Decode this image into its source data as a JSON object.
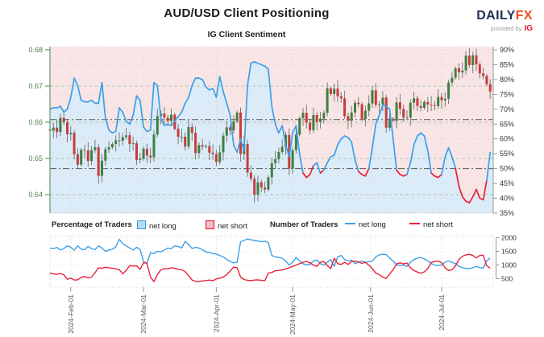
{
  "header": {
    "title": "AUD/USD Client Positioning",
    "subtitle": "IG Client Sentiment",
    "logo": {
      "brand_primary": "DAILY",
      "brand_accent": "FX",
      "provided_by": "provided by",
      "provider": "IG"
    }
  },
  "legend": {
    "percentage_title": "Percentage of Traders",
    "number_title": "Number of Traders",
    "net_long": "net long",
    "net_short": "net short"
  },
  "colors": {
    "accent_red": "#e8112d",
    "brand_navy": "#223154",
    "brand_orange": "#f04e23",
    "candle_up": "#3e8042",
    "candle_down": "#c63c3c",
    "wick": "#6e6e6e",
    "sentiment_long": "#3da0e8",
    "sentiment_short": "#e8213a",
    "bg_above_line": "#f9e5e5",
    "bg_below_line": "#dcebf8",
    "price_axis": "#4e8552",
    "pct_axis": "#333333",
    "grid_price": "#a8c8a8",
    "grid_pct": "#cfcfcf",
    "grid_month": "#cbcbcb",
    "reference": "#6a6a6a",
    "frame": "#c8c8c8",
    "tick_label": "#555555",
    "count_axis": "#333333"
  },
  "chart_data": [
    {
      "type": "candlestick+line",
      "title": "IG Client Sentiment",
      "legend_position": "below",
      "grid": true,
      "x_ticks": [
        {
          "label": "2024-Feb-01",
          "i": 6
        },
        {
          "label": "2024-Mar-01",
          "i": 27
        },
        {
          "label": "2024-Apr-01",
          "i": 48
        },
        {
          "label": "2024-May-01",
          "i": 70
        },
        {
          "label": "2024-Jun-01",
          "i": 92.5
        },
        {
          "label": "2024-Jul-01",
          "i": 113
        }
      ],
      "price_axis": {
        "side": "left",
        "ticks": [
          0.68,
          0.67,
          0.66,
          0.65,
          0.64
        ],
        "range": [
          0.635,
          0.681
        ]
      },
      "pct_axis": {
        "side": "right",
        "unit": "%",
        "ticks": [
          90,
          85,
          80,
          75,
          70,
          65,
          60,
          55,
          50,
          45,
          40,
          35
        ],
        "range": [
          35,
          90
        ]
      },
      "reference_lines_pct": [
        66.5,
        50
      ],
      "first_open": 0.658,
      "wick_margin": 0.0013,
      "dates": [
        "2024-01-24",
        "2024-01-25",
        "2024-01-26",
        "2024-01-29",
        "2024-01-30",
        "2024-01-31",
        "2024-02-01",
        "2024-02-02",
        "2024-02-05",
        "2024-02-06",
        "2024-02-07",
        "2024-02-08",
        "2024-02-09",
        "2024-02-12",
        "2024-02-13",
        "2024-02-14",
        "2024-02-15",
        "2024-02-16",
        "2024-02-19",
        "2024-02-20",
        "2024-02-21",
        "2024-02-22",
        "2024-02-23",
        "2024-02-26",
        "2024-02-27",
        "2024-02-28",
        "2024-02-29",
        "2024-03-01",
        "2024-03-04",
        "2024-03-05",
        "2024-03-06",
        "2024-03-07",
        "2024-03-08",
        "2024-03-11",
        "2024-03-12",
        "2024-03-13",
        "2024-03-14",
        "2024-03-15",
        "2024-03-18",
        "2024-03-19",
        "2024-03-20",
        "2024-03-21",
        "2024-03-22",
        "2024-03-25",
        "2024-03-26",
        "2024-03-27",
        "2024-03-28",
        "2024-03-29",
        "2024-04-01",
        "2024-04-02",
        "2024-04-03",
        "2024-04-04",
        "2024-04-05",
        "2024-04-08",
        "2024-04-09",
        "2024-04-10",
        "2024-04-11",
        "2024-04-12",
        "2024-04-15",
        "2024-04-16",
        "2024-04-17",
        "2024-04-18",
        "2024-04-19",
        "2024-04-22",
        "2024-04-23",
        "2024-04-24",
        "2024-04-25",
        "2024-04-26",
        "2024-04-29",
        "2024-04-30",
        "2024-05-01",
        "2024-05-02",
        "2024-05-03",
        "2024-05-06",
        "2024-05-07",
        "2024-05-08",
        "2024-05-09",
        "2024-05-10",
        "2024-05-13",
        "2024-05-14",
        "2024-05-15",
        "2024-05-16",
        "2024-05-17",
        "2024-05-20",
        "2024-05-21",
        "2024-05-22",
        "2024-05-23",
        "2024-05-24",
        "2024-05-27",
        "2024-05-28",
        "2024-05-29",
        "2024-05-30",
        "2024-05-31",
        "2024-06-03",
        "2024-06-04",
        "2024-06-05",
        "2024-06-06",
        "2024-06-07",
        "2024-06-10",
        "2024-06-11",
        "2024-06-12",
        "2024-06-13",
        "2024-06-14",
        "2024-06-17",
        "2024-06-18",
        "2024-06-19",
        "2024-06-20",
        "2024-06-21",
        "2024-06-24",
        "2024-06-25",
        "2024-06-26",
        "2024-06-27",
        "2024-06-28",
        "2024-07-01",
        "2024-07-02",
        "2024-07-03",
        "2024-07-04",
        "2024-07-05",
        "2024-07-08",
        "2024-07-09",
        "2024-07-10",
        "2024-07-11",
        "2024-07-12",
        "2024-07-15",
        "2024-07-16",
        "2024-07-17",
        "2024-07-18",
        "2024-07-19"
      ],
      "close": [
        0.6577,
        0.6585,
        0.6573,
        0.6612,
        0.66,
        0.6567,
        0.6571,
        0.6512,
        0.6483,
        0.6524,
        0.6522,
        0.6493,
        0.6523,
        0.6531,
        0.6452,
        0.6494,
        0.6525,
        0.6531,
        0.654,
        0.655,
        0.6549,
        0.6559,
        0.6564,
        0.654,
        0.6542,
        0.6496,
        0.6499,
        0.6527,
        0.6508,
        0.6503,
        0.6566,
        0.6617,
        0.6624,
        0.6613,
        0.6604,
        0.6621,
        0.6582,
        0.656,
        0.656,
        0.6533,
        0.6587,
        0.6571,
        0.6515,
        0.6537,
        0.6533,
        0.6534,
        0.6516,
        0.6512,
        0.649,
        0.6517,
        0.6563,
        0.6586,
        0.6578,
        0.6603,
        0.6627,
        0.6512,
        0.654,
        0.6461,
        0.6444,
        0.64,
        0.6434,
        0.642,
        0.6414,
        0.6448,
        0.6487,
        0.6498,
        0.6518,
        0.6532,
        0.6565,
        0.6472,
        0.6523,
        0.6566,
        0.6611,
        0.6626,
        0.6599,
        0.6578,
        0.662,
        0.6601,
        0.661,
        0.6626,
        0.6694,
        0.6678,
        0.6693,
        0.6672,
        0.6666,
        0.6617,
        0.6604,
        0.6627,
        0.6654,
        0.665,
        0.6609,
        0.6632,
        0.6652,
        0.6688,
        0.6648,
        0.6649,
        0.6668,
        0.6585,
        0.661,
        0.6604,
        0.6655,
        0.6637,
        0.6613,
        0.6613,
        0.6654,
        0.6666,
        0.6645,
        0.664,
        0.6656,
        0.6649,
        0.6647,
        0.6645,
        0.667,
        0.6661,
        0.6665,
        0.671,
        0.6723,
        0.6749,
        0.6738,
        0.6743,
        0.6784,
        0.6758,
        0.6785,
        0.676,
        0.6735,
        0.6728,
        0.6705,
        0.6685
      ],
      "net_long_pct": [
        70,
        70.5,
        70.5,
        71,
        69,
        70,
        74,
        80.5,
        78,
        73,
        72.5,
        72.5,
        73,
        72,
        72,
        79,
        67,
        63,
        62,
        62.5,
        70.5,
        69,
        66,
        65,
        68,
        74.5,
        73,
        64,
        62.5,
        63,
        79,
        78,
        67,
        64.5,
        65,
        64.5,
        66,
        67.5,
        69,
        72,
        74,
        78,
        80.5,
        80.5,
        80,
        77.5,
        76.5,
        77,
        74,
        81,
        76,
        72,
        68,
        58,
        55.5,
        60,
        56,
        78,
        85.5,
        86,
        85.5,
        85,
        84.5,
        83.5,
        71,
        65,
        62,
        64.5,
        58,
        54,
        62,
        64.5,
        55,
        48.5,
        47,
        48,
        51,
        52,
        48.5,
        49.5,
        52,
        54,
        54.5,
        58,
        60,
        61,
        60.5,
        59,
        53,
        49,
        48,
        47.5,
        50,
        57,
        65,
        68,
        71.5,
        71,
        70,
        60,
        49.5,
        48,
        47.5,
        48,
        52,
        58,
        61,
        62,
        61,
        56,
        48.5,
        47.5,
        47,
        48,
        54,
        57,
        54,
        50,
        44,
        40.5,
        39,
        38.5,
        40.5,
        43,
        40,
        39.5,
        46,
        55.5
      ]
    },
    {
      "type": "line",
      "title": "Number of Traders",
      "y_axis": {
        "side": "right",
        "ticks": [
          2000,
          1500,
          1000,
          500
        ],
        "range": [
          250,
          2100
        ]
      },
      "series": [
        {
          "name": "net long",
          "values": [
            1620,
            1600,
            1640,
            1550,
            1600,
            1700,
            1650,
            1540,
            1700,
            1580,
            1560,
            1680,
            1600,
            1560,
            1700,
            1620,
            1500,
            1550,
            1580,
            1660,
            1940,
            1780,
            1700,
            1620,
            1550,
            1650,
            1570,
            1120,
            1060,
            1450,
            1420,
            1500,
            1480,
            1550,
            1620,
            1600,
            1700,
            1680,
            1620,
            1860,
            1750,
            1600,
            1650,
            1620,
            1560,
            1480,
            1460,
            1420,
            1400,
            1350,
            1300,
            1200,
            1130,
            1080,
            1100,
            1850,
            1900,
            1950,
            1920,
            1900,
            1880,
            1850,
            1870,
            1820,
            1350,
            1300,
            1280,
            1250,
            1150,
            1000,
            1100,
            1280,
            1150,
            1050,
            1000,
            1020,
            1150,
            1180,
            1050,
            1000,
            1100,
            1200,
            950,
            1300,
            1350,
            1200,
            1150,
            1180,
            1050,
            1100,
            1150,
            1100,
            1120,
            1150,
            1300,
            1370,
            1400,
            1380,
            1250,
            1150,
            1000,
            980,
            1000,
            950,
            1100,
            1200,
            1250,
            1280,
            1220,
            1150,
            1050,
            1000,
            980,
            1000,
            1100,
            1150,
            1100,
            1050,
            950,
            900,
            880,
            870,
            900,
            950,
            900,
            890,
            1150,
            1260
          ]
        },
        {
          "name": "net short",
          "values": [
            700,
            680,
            660,
            690,
            640,
            480,
            520,
            450,
            460,
            550,
            580,
            530,
            560,
            720,
            900,
            880,
            920,
            900,
            880,
            860,
            830,
            680,
            800,
            980,
            960,
            970,
            840,
            1085,
            1060,
            560,
            390,
            650,
            820,
            870,
            860,
            900,
            880,
            840,
            830,
            760,
            615,
            450,
            400,
            392,
            420,
            430,
            450,
            425,
            490,
            520,
            560,
            650,
            780,
            930,
            900,
            560,
            470,
            440,
            430,
            450,
            460,
            440,
            430,
            700,
            730,
            790,
            800,
            820,
            860,
            900,
            950,
            1000,
            1050,
            1100,
            1130,
            1080,
            1000,
            950,
            1100,
            1130,
            980,
            870,
            1250,
            1050,
            1020,
            1100,
            1020,
            1130,
            1140,
            1120,
            1060,
            1100,
            990,
            870,
            700,
            650,
            560,
            510,
            670,
            830,
            1040,
            1080,
            1040,
            1070,
            900,
            800,
            740,
            700,
            750,
            870,
            1090,
            1130,
            1150,
            1080,
            900,
            800,
            830,
            970,
            1210,
            1320,
            1370,
            1390,
            1350,
            1260,
            1350,
            1360,
            980,
            880
          ]
        }
      ]
    }
  ]
}
